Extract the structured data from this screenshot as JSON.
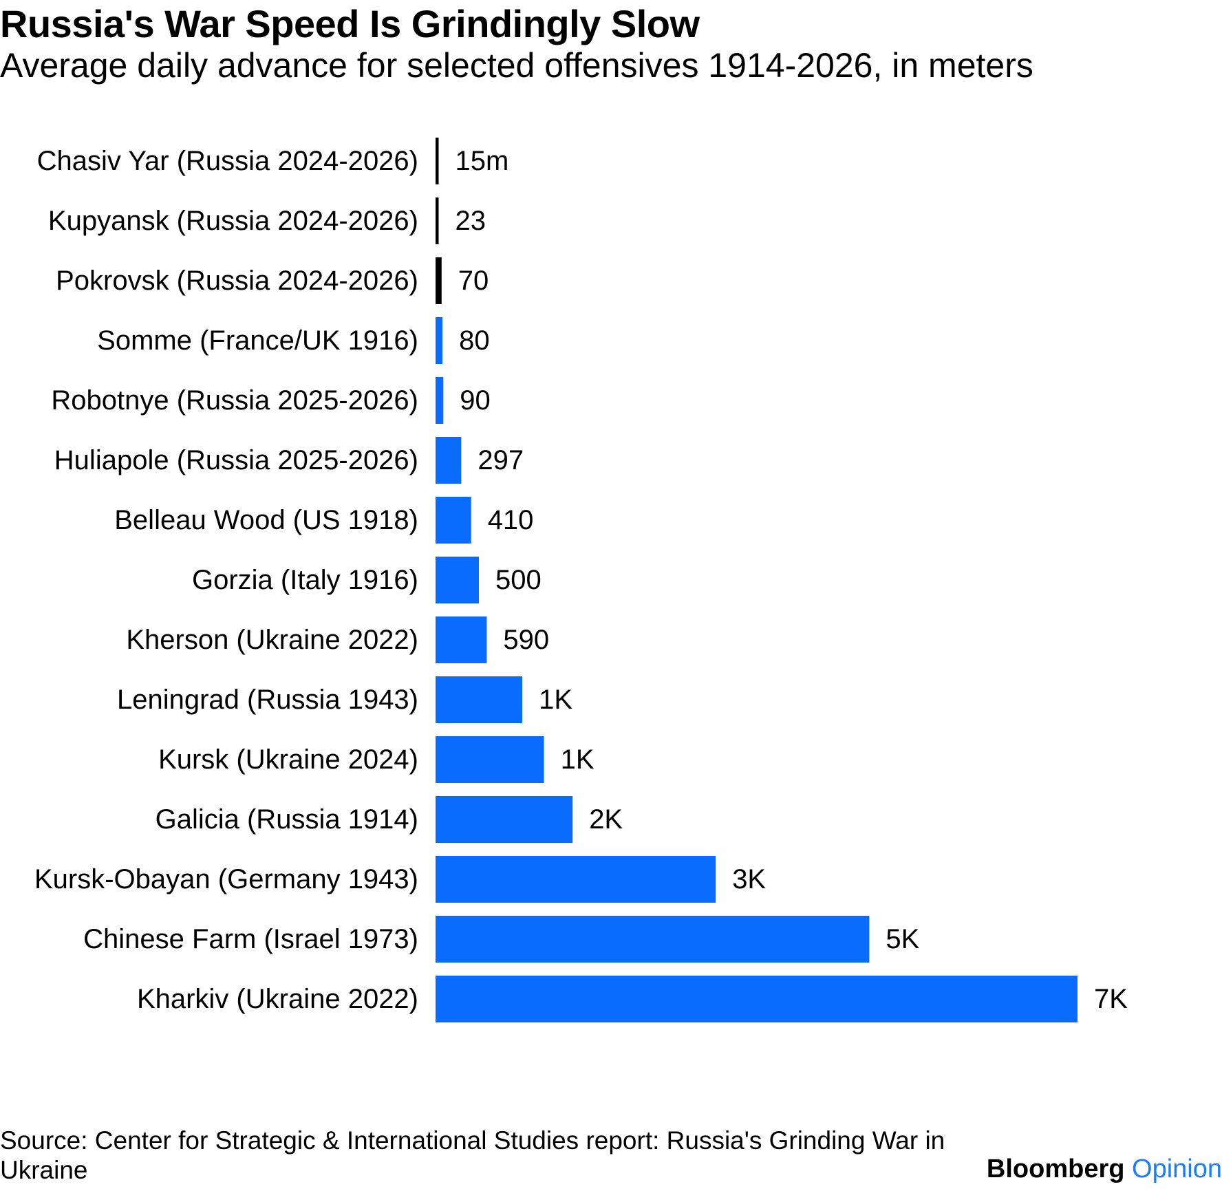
{
  "title": "Russia's War Speed Is Grindingly Slow",
  "subtitle": "Average daily advance for selected offensives 1914-2026, in meters",
  "source": "Source: Center for Strategic & International Studies report: Russia's Grinding War in Ukraine",
  "brand": {
    "name": "Bloomberg",
    "section": "Opinion"
  },
  "colors": {
    "highlight": "#000000",
    "bar": "#0a6cff"
  },
  "chart_data": {
    "type": "bar",
    "orientation": "horizontal",
    "title": "Russia's War Speed Is Grindingly Slow",
    "subtitle": "Average daily advance for selected offensives 1914-2026, in meters",
    "xlabel": "",
    "ylabel": "",
    "unit": "meters per day",
    "categories": [
      "Chasiv Yar (Russia 2024-2026)",
      "Kupyansk (Russia 2024-2026)",
      "Pokrovsk (Russia 2024-2026)",
      "Somme (France/UK 1916)",
      "Robotnye (Russia 2025-2026)",
      "Huliapole (Russia 2025-2026)",
      "Belleau Wood (US 1918)",
      "Gorzia (Italy 1916)",
      "Kherson (Ukraine 2022)",
      "Leningrad (Russia 1943)",
      "Kursk (Ukraine 2024)",
      "Galicia (Russia 1914)",
      "Kursk-Obayan (Germany 1943)",
      "Chinese Farm (Israel 1973)",
      "Kharkiv (Ukraine 2022)"
    ],
    "values": [
      15,
      23,
      70,
      80,
      90,
      297,
      410,
      500,
      590,
      1000,
      1250,
      1580,
      3230,
      5000,
      7400
    ],
    "labels": [
      "15m",
      "23",
      "70",
      "80",
      "90",
      "297",
      "410",
      "500",
      "590",
      "1K",
      "1K",
      "2K",
      "3K",
      "5K",
      "7K"
    ],
    "highlighted": [
      true,
      true,
      true,
      false,
      false,
      false,
      false,
      false,
      false,
      false,
      false,
      false,
      false,
      false,
      false
    ],
    "xlim": [
      0,
      7400
    ],
    "grid": false,
    "legend": "none"
  }
}
